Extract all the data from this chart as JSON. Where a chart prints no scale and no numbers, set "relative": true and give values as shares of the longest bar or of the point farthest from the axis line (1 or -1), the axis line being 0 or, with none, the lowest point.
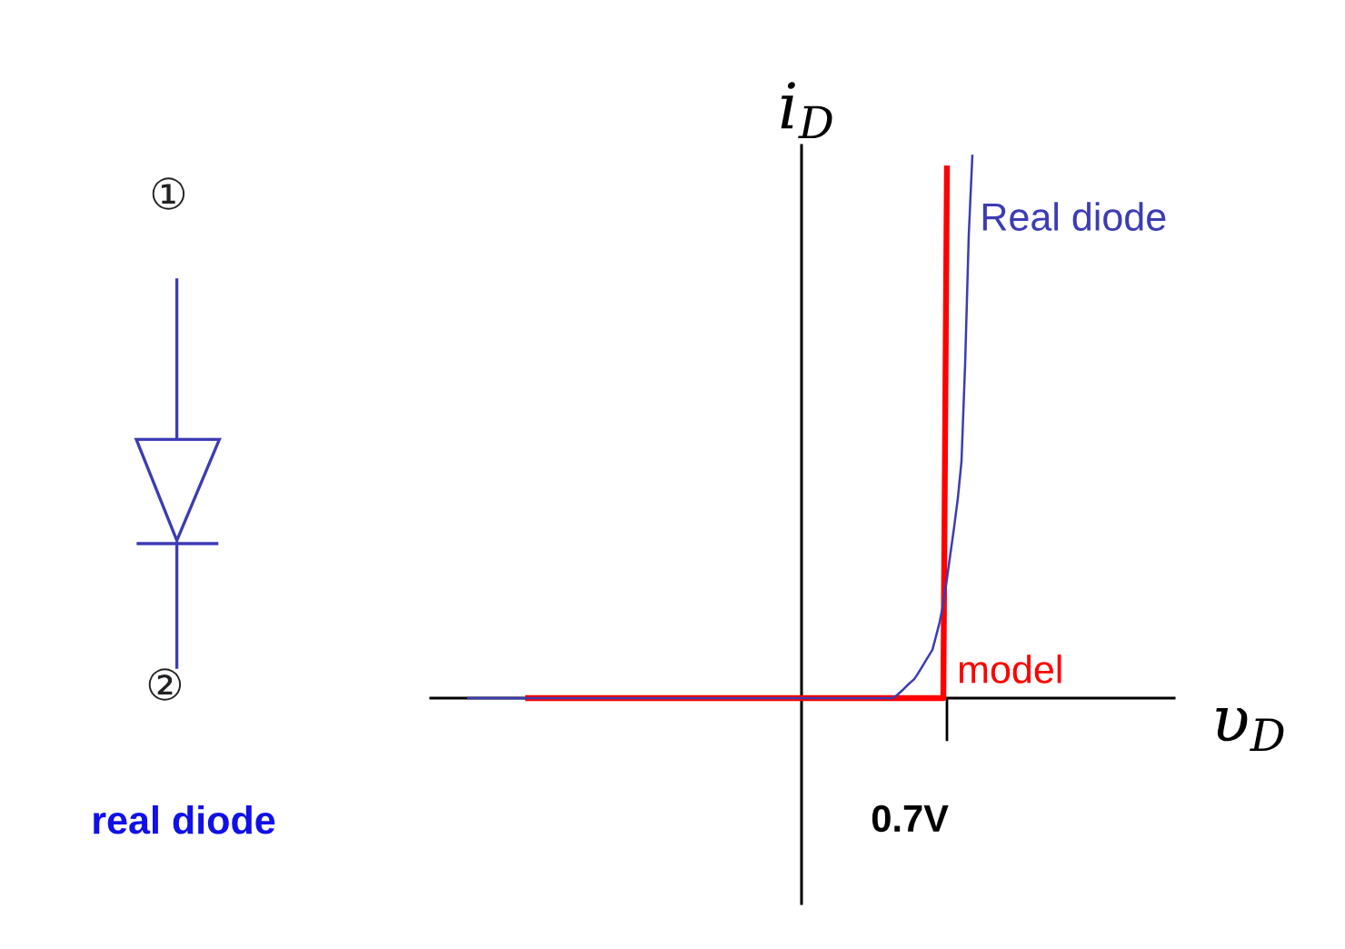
{
  "chart_data": {
    "type": "line",
    "xlabel": "υ$_{D}$",
    "relative": true,
    "categories": [
      null,
      null,
      null,
      null,
      null,
      null,
      null,
      null,
      null,
      null,
      null,
      null,
      null,
      null,
      null,
      null,
      null,
      null,
      null,
      null,
      null,
      null,
      null,
      null,
      null,
      null,
      null,
      null,
      null,
      null,
      null,
      null,
      null,
      null,
      null,
      null,
      null,
      null,
      null,
      null,
      null,
      null,
      null,
      null,
      null,
      null,
      null,
      null,
      null,
      null,
      null,
      null,
      null,
      null,
      null,
      null,
      null,
      null,
      null,
      null,
      null,
      null,
      null,
      null,
      null,
      null,
      null,
      null,
      null,
      null,
      null,
      null,
      null,
      null,
      null,
      null,
      null,
      null,
      null,
      null,
      null,
      null,
      null,
      null,
      null,
      null,
      null,
      null,
      null,
      null,
      null,
      null,
      null,
      null,
      null,
      null,
      null,
      null,
      null,
      null,
      null,
      null,
      null,
      null,
      null,
      null,
      null,
      null,
      null,
      null,
      null,
      null,
      null,
      null,
      null,
      null,
      null,
      null,
      null,
      null,
      null,
      null,
      null,
      null,
      null,
      null,
      null,
      null,
      null,
      null,
      null,
      null,
      null,
      null,
      null,
      null,
      null,
      null,
      null,
      null
    ],
    "series": [
      {
        "name": "model",
        "color": "#ff0000",
        "values": [
          null,
          null,
          null,
          null,
          null,
          null,
          null,
          null,
          null,
          null,
          null,
          null,
          null,
          null,
          null,
          null,
          0,
          0,
          0,
          0,
          0,
          0,
          0,
          0,
          0,
          0,
          0,
          0,
          0,
          0,
          0,
          0,
          0,
          0,
          0,
          0,
          0,
          0,
          0,
          0,
          0,
          0,
          0,
          0,
          0,
          0,
          0,
          0,
          0,
          0,
          0,
          0,
          0,
          0,
          0,
          0,
          0,
          0,
          0,
          0,
          0,
          0,
          0,
          0,
          0,
          0,
          0,
          0,
          0,
          0,
          0,
          0,
          0,
          0,
          0,
          0,
          0,
          0,
          0,
          0,
          0,
          0,
          0,
          0,
          0,
          0,
          0,
          0,
          0,
          0,
          0,
          0,
          0,
          0,
          0,
          0,
          0,
          0,
          0,
          0,
          0,
          0,
          0,
          0,
          0,
          0,
          0,
          0,
          0,
          0,
          0,
          0,
          0,
          0,
          0,
          0,
          0,
          0,
          0,
          0,
          0,
          0,
          0,
          0,
          0,
          0,
          0,
          0,
          0,
          0,
          0,
          0,
          0.98,
          null,
          null,
          null,
          null,
          null,
          null,
          null
        ]
      },
      {
        "name": "Real diode",
        "color": "#3c3cb4",
        "values": [
          0,
          0,
          0,
          0,
          0,
          0,
          0,
          0,
          0,
          0,
          0,
          0,
          0,
          0,
          0,
          0,
          0,
          0,
          0,
          0,
          0,
          0,
          0,
          0,
          0,
          0,
          0,
          0,
          0,
          0,
          0,
          0,
          0,
          0,
          0,
          0,
          0,
          0,
          0,
          0,
          0,
          0,
          0,
          0,
          0,
          0,
          0,
          0,
          0,
          0,
          0,
          0,
          0,
          0,
          0,
          0,
          0,
          0,
          0,
          0,
          0,
          0,
          0,
          0,
          0,
          0,
          0,
          0,
          0,
          0,
          0,
          0,
          0,
          0,
          0,
          0,
          0,
          0,
          0,
          0,
          0,
          0,
          0,
          0,
          0,
          0,
          0,
          0,
          0,
          0,
          0,
          0,
          0,
          0,
          0,
          0,
          0,
          0,
          0,
          0,
          0,
          0,
          0,
          0,
          0,
          0,
          0,
          0,
          0,
          0,
          0,
          0,
          0,
          0,
          0,
          0,
          0,
          0,
          0.004,
          0.01,
          0.016,
          0.023,
          0.029,
          0.035,
          0.045,
          0.056,
          0.067,
          0.078,
          0.089,
          0.114,
          0.14,
          0.174,
          0.22,
          0.268,
          0.316,
          0.368,
          0.436,
          0.615,
          0.852,
          1.0
        ]
      }
    ],
    "annotations": [
      "i$_{D}$",
      "0.7V",
      "①",
      "②",
      "real diode"
    ]
  }
}
